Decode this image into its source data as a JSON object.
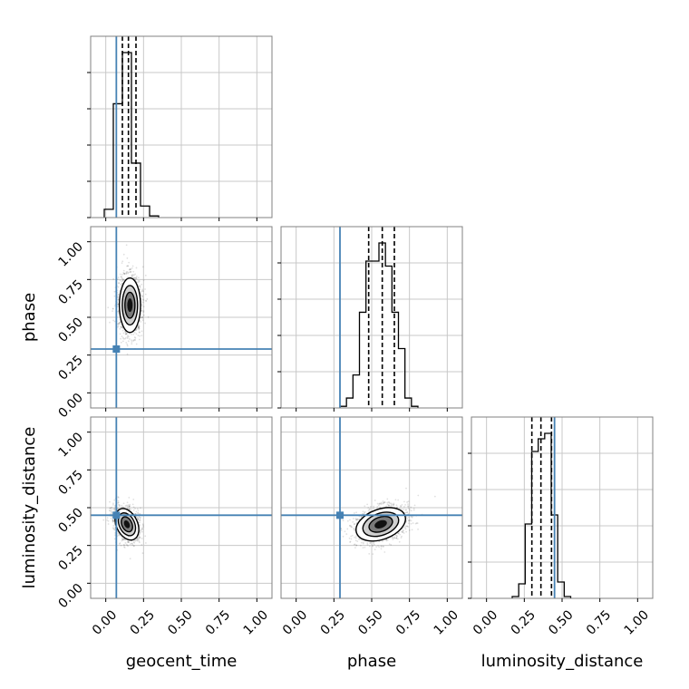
{
  "chart_data": {
    "type": "corner",
    "parameters": [
      "geocent_time",
      "phase",
      "luminosity_distance"
    ],
    "axis_range": [
      -0.1,
      1.1
    ],
    "tick_labels": [
      "0.00",
      "0.25",
      "0.50",
      "0.75",
      "1.00"
    ],
    "tick_values": [
      0.0,
      0.25,
      0.5,
      0.75,
      1.0
    ],
    "grid": true,
    "colors": {
      "truth": "#4682b4",
      "hist": "#000000",
      "density": "#000000"
    },
    "truths": {
      "geocent_time": 0.07,
      "phase": 0.29,
      "luminosity_distance": 0.45
    },
    "histograms": [
      {
        "parameter": "geocent_time",
        "bin_width": 0.06,
        "bins": [
          {
            "x0": -0.01,
            "count": 0.05
          },
          {
            "x0": 0.05,
            "count": 0.69
          },
          {
            "x0": 0.11,
            "count": 1.0
          },
          {
            "x0": 0.17,
            "count": 0.33
          },
          {
            "x0": 0.23,
            "count": 0.07
          },
          {
            "x0": 0.29,
            "count": 0.01
          }
        ],
        "quantiles": [
          0.11,
          0.15,
          0.2
        ]
      },
      {
        "parameter": "phase",
        "bin_width": 0.043,
        "bins": [
          {
            "x0": 0.29,
            "count": 0.01
          },
          {
            "x0": 0.333,
            "count": 0.06
          },
          {
            "x0": 0.376,
            "count": 0.2
          },
          {
            "x0": 0.419,
            "count": 0.58
          },
          {
            "x0": 0.462,
            "count": 0.89
          },
          {
            "x0": 0.505,
            "count": 0.89
          },
          {
            "x0": 0.548,
            "count": 1.0
          },
          {
            "x0": 0.591,
            "count": 0.86
          },
          {
            "x0": 0.634,
            "count": 0.58
          },
          {
            "x0": 0.677,
            "count": 0.36
          },
          {
            "x0": 0.72,
            "count": 0.06
          },
          {
            "x0": 0.763,
            "count": 0.01
          }
        ],
        "quantiles": [
          0.48,
          0.57,
          0.65
        ]
      },
      {
        "parameter": "luminosity_distance",
        "bin_width": 0.043,
        "bins": [
          {
            "x0": 0.17,
            "count": 0.01
          },
          {
            "x0": 0.213,
            "count": 0.08
          },
          {
            "x0": 0.256,
            "count": 0.41
          },
          {
            "x0": 0.299,
            "count": 0.81
          },
          {
            "x0": 0.342,
            "count": 0.88
          },
          {
            "x0": 0.385,
            "count": 0.91
          },
          {
            "x0": 0.428,
            "count": 0.46
          },
          {
            "x0": 0.471,
            "count": 0.09
          },
          {
            "x0": 0.514,
            "count": 0.01
          }
        ],
        "quantiles": [
          0.3,
          0.36,
          0.43
        ]
      }
    ],
    "densities": [
      {
        "x_param": "geocent_time",
        "y_param": "phase",
        "center": [
          0.16,
          0.58
        ],
        "spread": [
          0.035,
          0.09
        ],
        "rotation": 0
      },
      {
        "x_param": "geocent_time",
        "y_param": "luminosity_distance",
        "center": [
          0.14,
          0.39
        ],
        "spread": [
          0.035,
          0.055
        ],
        "rotation": -25
      },
      {
        "x_param": "phase",
        "y_param": "luminosity_distance",
        "center": [
          0.56,
          0.39
        ],
        "spread": [
          0.085,
          0.05
        ],
        "rotation": -20
      }
    ]
  }
}
